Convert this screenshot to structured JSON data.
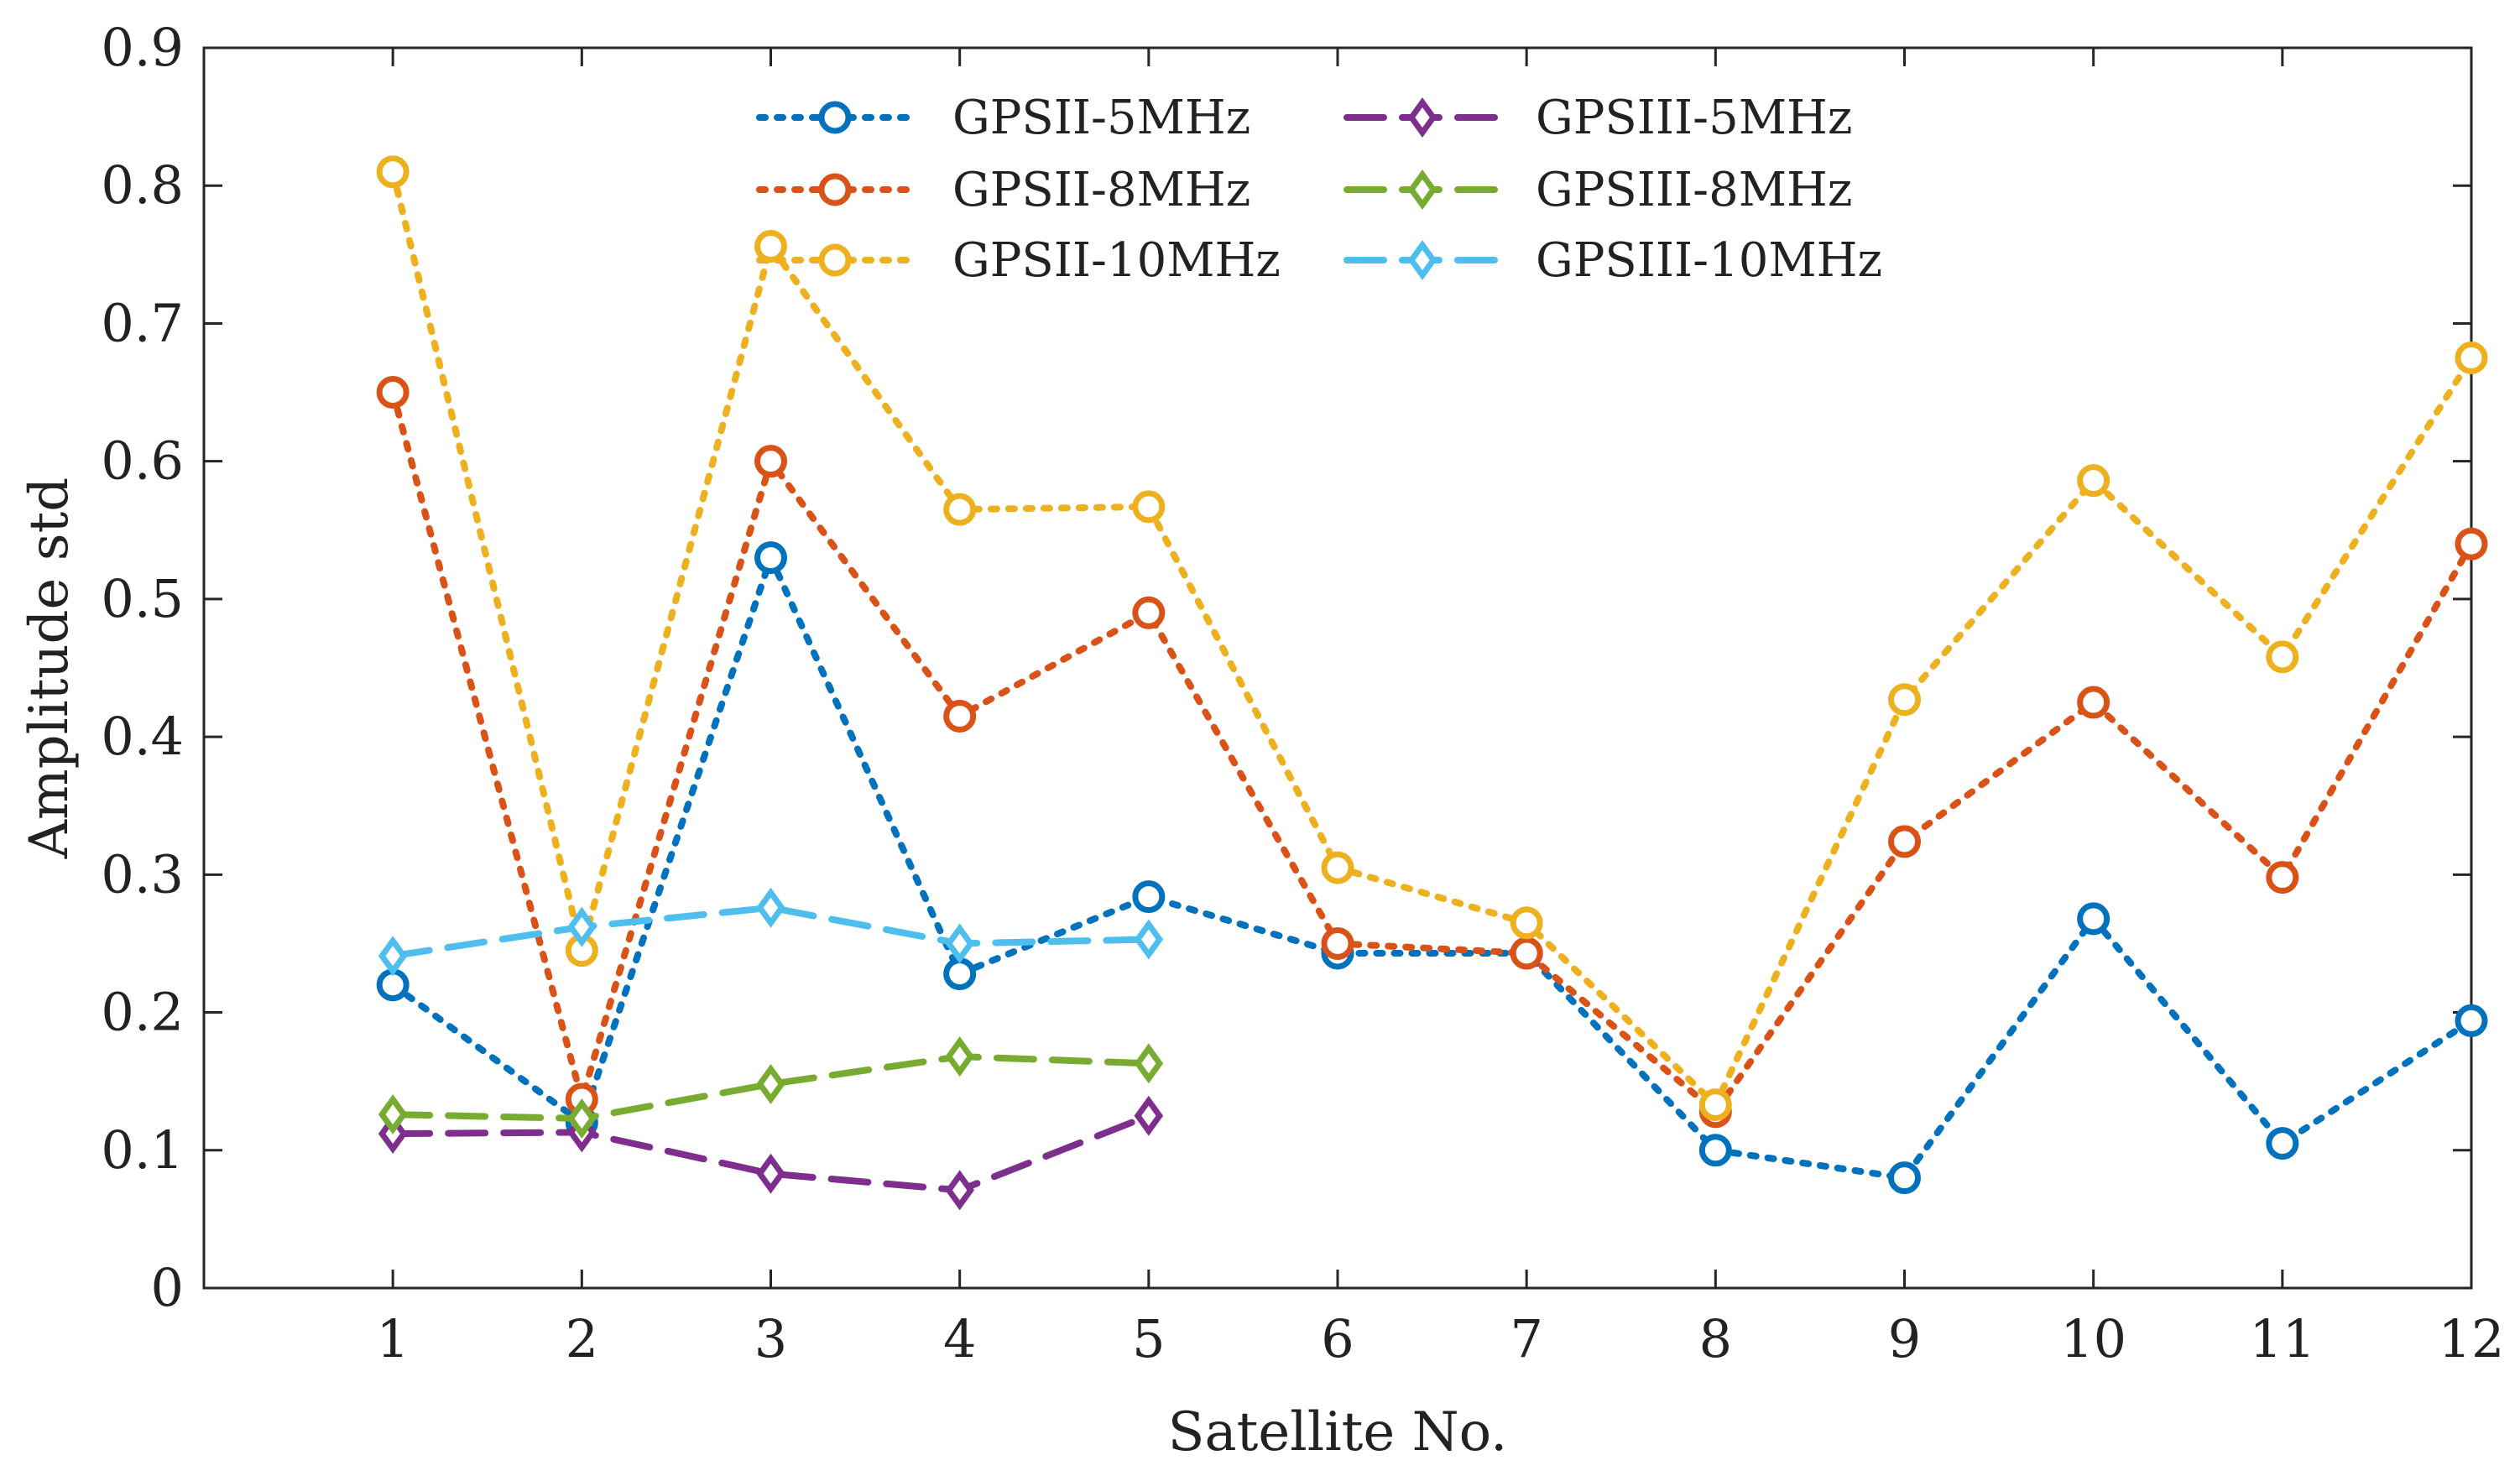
{
  "chart_data": {
    "type": "line",
    "title": "",
    "xlabel": "Satellite No.",
    "ylabel": "Amplitude std",
    "xlim": [
      0,
      12
    ],
    "ylim": [
      0,
      0.9
    ],
    "xticks": [
      1,
      2,
      3,
      4,
      5,
      6,
      7,
      8,
      9,
      10,
      11,
      12
    ],
    "yticks": [
      0,
      0.1,
      0.2,
      0.3,
      0.4,
      0.5,
      0.6,
      0.7,
      0.8,
      0.9
    ],
    "ytick_labels": [
      "0",
      "0.1",
      "0.2",
      "0.3",
      "0.4",
      "0.5",
      "0.6",
      "0.7",
      "0.8",
      "0.9"
    ],
    "grid": false,
    "legend_position": "top-center",
    "series": [
      {
        "name": "GPSII-5MHz",
        "color": "#0072BD",
        "line": "dotted",
        "marker": "circle",
        "x": [
          1,
          2,
          3,
          4,
          5,
          6,
          7,
          8,
          9,
          10,
          11,
          12
        ],
        "y": [
          0.22,
          0.12,
          0.53,
          0.228,
          0.284,
          0.243,
          0.243,
          0.1,
          0.08,
          0.268,
          0.105,
          0.194
        ]
      },
      {
        "name": "GPSII-8MHz",
        "color": "#D95319",
        "line": "dotted",
        "marker": "circle",
        "x": [
          1,
          2,
          3,
          4,
          5,
          6,
          7,
          8,
          9,
          10,
          11,
          12
        ],
        "y": [
          0.65,
          0.137,
          0.6,
          0.415,
          0.49,
          0.25,
          0.243,
          0.128,
          0.324,
          0.425,
          0.298,
          0.54
        ]
      },
      {
        "name": "GPSII-10MHz",
        "color": "#EDB120",
        "line": "dotted",
        "marker": "circle",
        "x": [
          1,
          2,
          3,
          4,
          5,
          6,
          7,
          8,
          9,
          10,
          11,
          12
        ],
        "y": [
          0.81,
          0.245,
          0.756,
          0.565,
          0.567,
          0.305,
          0.265,
          0.133,
          0.427,
          0.586,
          0.458,
          0.675
        ]
      },
      {
        "name": "GPSIII-5MHz",
        "color": "#7E2F8E",
        "line": "dashed",
        "marker": "diamond",
        "x": [
          1,
          2,
          3,
          4,
          5
        ],
        "y": [
          0.112,
          0.113,
          0.083,
          0.071,
          0.125
        ]
      },
      {
        "name": "GPSIII-8MHz",
        "color": "#77AC30",
        "line": "dashed",
        "marker": "diamond",
        "x": [
          1,
          2,
          3,
          4,
          5
        ],
        "y": [
          0.126,
          0.123,
          0.148,
          0.168,
          0.163
        ]
      },
      {
        "name": "GPSIII-10MHz",
        "color": "#4DBEEE",
        "line": "dashed",
        "marker": "diamond",
        "x": [
          1,
          2,
          3,
          4,
          5
        ],
        "y": [
          0.241,
          0.262,
          0.276,
          0.25,
          0.253
        ]
      }
    ]
  }
}
